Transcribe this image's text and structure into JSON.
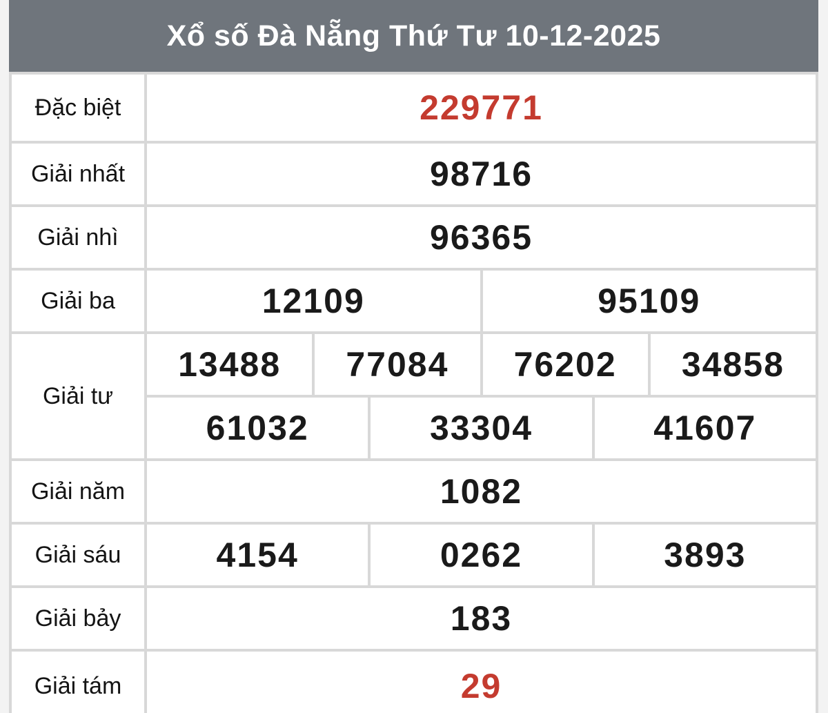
{
  "header": {
    "title": "Xổ số Đà Nẵng Thứ Tư 10-12-2025"
  },
  "colors": {
    "page_bg": "#f3f3f3",
    "header_bg": "#6f757c",
    "header_text": "#ffffff",
    "cell_bg": "#ffffff",
    "border": "#d8d8d8",
    "label_text": "#141414",
    "number_text": "#1a1a1a",
    "highlight_text": "#c43b2f"
  },
  "prizes": [
    {
      "label": "Đặc biệt",
      "highlight": true,
      "groups": [
        [
          "229771"
        ]
      ]
    },
    {
      "label": "Giải nhất",
      "highlight": false,
      "groups": [
        [
          "98716"
        ]
      ]
    },
    {
      "label": "Giải nhì",
      "highlight": false,
      "groups": [
        [
          "96365"
        ]
      ]
    },
    {
      "label": "Giải ba",
      "highlight": false,
      "groups": [
        [
          "12109",
          "95109"
        ]
      ]
    },
    {
      "label": "Giải tư",
      "highlight": false,
      "groups": [
        [
          "13488",
          "77084",
          "76202",
          "34858"
        ],
        [
          "61032",
          "33304",
          "41607"
        ]
      ]
    },
    {
      "label": "Giải năm",
      "highlight": false,
      "groups": [
        [
          "1082"
        ]
      ]
    },
    {
      "label": "Giải sáu",
      "highlight": false,
      "groups": [
        [
          "4154",
          "0262",
          "3893"
        ]
      ]
    },
    {
      "label": "Giải bảy",
      "highlight": false,
      "groups": [
        [
          "183"
        ]
      ]
    },
    {
      "label": "Giải tám",
      "highlight": true,
      "groups": [
        [
          "29"
        ]
      ]
    }
  ]
}
